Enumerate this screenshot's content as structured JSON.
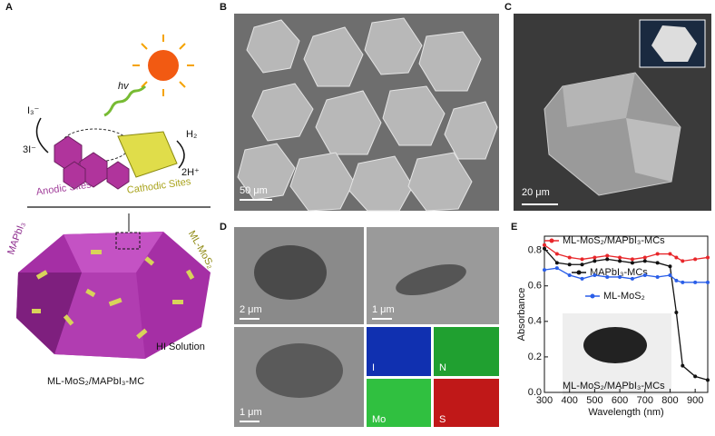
{
  "panels": {
    "A": {
      "label": "A",
      "light": "hv",
      "triiodide": "I₃⁻",
      "iodide": "3I⁻",
      "hydrogen": "H₂",
      "protons": "2H⁺",
      "anodic": "Anodic Sites",
      "cathodic": "Cathodic Sites",
      "crystal": "MAPbI₃",
      "cocatalyst": "ML-MoS₂",
      "solution": "HI Solution",
      "caption": "ML-MoS₂/MAPbI₃-MC"
    },
    "B": {
      "label": "B",
      "scale_bar": "50 μm"
    },
    "C": {
      "label": "C",
      "scale_bar": "20 μm"
    },
    "D": {
      "label": "D",
      "scale_bars": [
        "2 μm",
        "1 μm",
        "1 μm"
      ],
      "maps": [
        "I",
        "N",
        "Mo",
        "S"
      ]
    },
    "E": {
      "label": "E",
      "inset_label": "ML-MoS₂/MAPbI₃-MCs",
      "chart_data": {
        "type": "line",
        "x_label": "Wavelength (nm)",
        "y_label": "Absorbance",
        "x": [
          300,
          350,
          400,
          450,
          500,
          550,
          600,
          650,
          700,
          750,
          800,
          825,
          850,
          900,
          950
        ],
        "series": [
          {
            "name": "ML-MoS₂/MAPbI₃-MCs",
            "color": "#e8262a",
            "values": [
              0.83,
              0.78,
              0.76,
              0.75,
              0.76,
              0.77,
              0.76,
              0.75,
              0.76,
              0.78,
              0.78,
              0.76,
              0.74,
              0.75,
              0.76
            ]
          },
          {
            "name": "MAPbI₃-MCs",
            "color": "#111111",
            "values": [
              0.81,
              0.73,
              0.72,
              0.72,
              0.74,
              0.75,
              0.74,
              0.73,
              0.74,
              0.73,
              0.71,
              0.45,
              0.15,
              0.09,
              0.07
            ]
          },
          {
            "name": "ML-MoS₂",
            "color": "#2a5ee8",
            "values": [
              0.69,
              0.7,
              0.66,
              0.64,
              0.66,
              0.65,
              0.65,
              0.64,
              0.66,
              0.65,
              0.66,
              0.63,
              0.62,
              0.62,
              0.62
            ]
          }
        ],
        "xlim": [
          300,
          950
        ],
        "ylim": [
          0,
          0.88
        ],
        "xticks": [
          300,
          400,
          500,
          600,
          700,
          800,
          900
        ],
        "yticks": [
          {
            "value": 0,
            "label": "0.0"
          },
          0.2,
          0.4,
          0.6,
          0.8
        ]
      }
    }
  }
}
